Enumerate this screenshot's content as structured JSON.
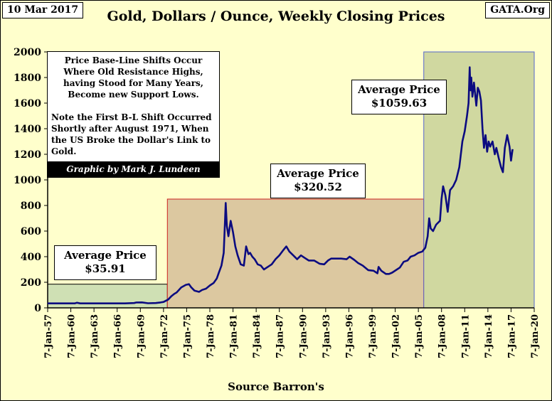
{
  "header": {
    "date": "10 Mar 2017",
    "source_site": "GATA.Org"
  },
  "source": "Source Barron's",
  "annotations": {
    "note_line1": "Price Base-Line Shifts Occur Where Old Resistance Highs, having Stood for Many Years, Become new Support Lows.",
    "note_line2": "Note the First B-L Shift Occurred Shortly after August 1971, When the US Broke the Dollar's Link to Gold.",
    "credit": "Graphic by Mark J. Lundeen",
    "avg1_label": "Average Price",
    "avg1_value": "$35.91",
    "avg2_label": "Average Price",
    "avg2_value": "$320.52",
    "avg3_label": "Average Price",
    "avg3_value": "$1059.63"
  },
  "colors": {
    "background": "#ffffcc",
    "line": "#0b0b80",
    "region1_fill": "#cfe0b4",
    "region2_fill": "#dcc8a0",
    "region2_border": "#cc2222",
    "region3_fill": "#d0d8a0",
    "region3_border": "#5566cc"
  },
  "chart_data": {
    "type": "line",
    "title": "Gold, Dollars / Ounce, Weekly Closing Prices",
    "xlabel": "",
    "ylabel": "",
    "xlim": [
      1957.0,
      2020.0
    ],
    "ylim": [
      0,
      2000
    ],
    "yticks": [
      0,
      200,
      400,
      600,
      800,
      1000,
      1200,
      1400,
      1600,
      1800,
      2000
    ],
    "xtick_labels": [
      "7-Jan-57",
      "7-Jan-60",
      "7-Jan-63",
      "7-Jan-66",
      "7-Jan-69",
      "7-Jan-72",
      "7-Jan-75",
      "7-Jan-78",
      "7-Jan-81",
      "7-Jan-84",
      "7-Jan-87",
      "7-Jan-90",
      "7-Jan-93",
      "7-Jan-96",
      "7-Jan-99",
      "7-Jan-02",
      "7-Jan-05",
      "7-Jan-08",
      "7-Jan-11",
      "7-Jan-14",
      "7-Jan-17",
      "7-Jan-20"
    ],
    "xtick_values": [
      1957,
      1960,
      1963,
      1966,
      1969,
      1972,
      1975,
      1978,
      1981,
      1984,
      1987,
      1990,
      1993,
      1996,
      1999,
      2002,
      2005,
      2008,
      2011,
      2014,
      2017,
      2020
    ],
    "grid": false,
    "regions": [
      {
        "x_start": 1957.0,
        "x_end": 1972.5,
        "average": 35.91,
        "y_top": 185
      },
      {
        "x_start": 1972.5,
        "x_end": 2005.7,
        "average": 320.52,
        "y_top": 850
      },
      {
        "x_start": 2005.7,
        "x_end": 2020.0,
        "average": 1059.63,
        "y_top": 2000
      }
    ],
    "series": [
      {
        "x": [
          1957.0,
          1960.5,
          1960.8,
          1961.2,
          1964.0,
          1967.0,
          1968.2,
          1968.5,
          1969.2,
          1970.0,
          1971.0,
          1971.6,
          1972.0,
          1972.6,
          1973.0,
          1973.4,
          1973.7,
          1974.0,
          1974.3,
          1974.9,
          1975.3,
          1975.6,
          1976.0,
          1976.6,
          1977.0,
          1977.5,
          1978.0,
          1978.5,
          1978.9,
          1979.2,
          1979.5,
          1979.8,
          1979.95,
          1980.05,
          1980.2,
          1980.4,
          1980.7,
          1981.0,
          1981.3,
          1981.6,
          1982.0,
          1982.4,
          1982.7,
          1983.0,
          1983.2,
          1983.5,
          1983.8,
          1984.2,
          1984.6,
          1985.0,
          1985.5,
          1986.0,
          1986.5,
          1987.0,
          1987.5,
          1987.9,
          1988.3,
          1988.8,
          1989.3,
          1989.8,
          1990.3,
          1990.8,
          1991.5,
          1992.2,
          1992.8,
          1993.3,
          1993.7,
          1994.3,
          1995.0,
          1995.7,
          1996.1,
          1996.7,
          1997.2,
          1997.8,
          1998.5,
          1999.2,
          1999.7,
          1999.85,
          2000.2,
          2000.8,
          2001.2,
          2001.6,
          2002.1,
          2002.6,
          2003.1,
          2003.6,
          2004.0,
          2004.5,
          2005.0,
          2005.5,
          2005.9,
          2006.2,
          2006.4,
          2006.6,
          2006.9,
          2007.3,
          2007.8,
          2008.0,
          2008.2,
          2008.5,
          2008.8,
          2009.1,
          2009.5,
          2009.9,
          2010.3,
          2010.7,
          2011.0,
          2011.3,
          2011.5,
          2011.65,
          2011.75,
          2011.85,
          2012.0,
          2012.2,
          2012.5,
          2012.7,
          2012.9,
          2013.1,
          2013.3,
          2013.5,
          2013.7,
          2013.9,
          2014.1,
          2014.3,
          2014.6,
          2014.9,
          2015.1,
          2015.4,
          2015.7,
          2015.95,
          2016.2,
          2016.5,
          2016.8,
          2017.0,
          2017.2
        ],
        "y": [
          35,
          35,
          40,
          35,
          35,
          35,
          38,
          42,
          43,
          36,
          38,
          42,
          46,
          65,
          90,
          110,
          120,
          140,
          160,
          180,
          185,
          160,
          135,
          125,
          140,
          150,
          175,
          195,
          230,
          280,
          330,
          430,
          660,
          820,
          640,
          560,
          680,
          590,
          480,
          410,
          340,
          330,
          480,
          420,
          430,
          400,
          380,
          340,
          330,
          300,
          320,
          340,
          380,
          410,
          450,
          480,
          440,
          410,
          380,
          410,
          390,
          370,
          370,
          345,
          340,
          370,
          385,
          385,
          385,
          380,
          400,
          375,
          350,
          330,
          295,
          290,
          270,
          320,
          290,
          265,
          265,
          275,
          295,
          315,
          360,
          370,
          400,
          410,
          430,
          440,
          470,
          560,
          700,
          620,
          600,
          650,
          680,
          850,
          950,
          880,
          750,
          920,
          950,
          1000,
          1100,
          1300,
          1380,
          1500,
          1600,
          1880,
          1700,
          1800,
          1650,
          1760,
          1580,
          1720,
          1690,
          1620,
          1400,
          1250,
          1350,
          1220,
          1300,
          1260,
          1300,
          1200,
          1250,
          1170,
          1100,
          1060,
          1250,
          1350,
          1260,
          1150,
          1240
        ]
      }
    ]
  }
}
